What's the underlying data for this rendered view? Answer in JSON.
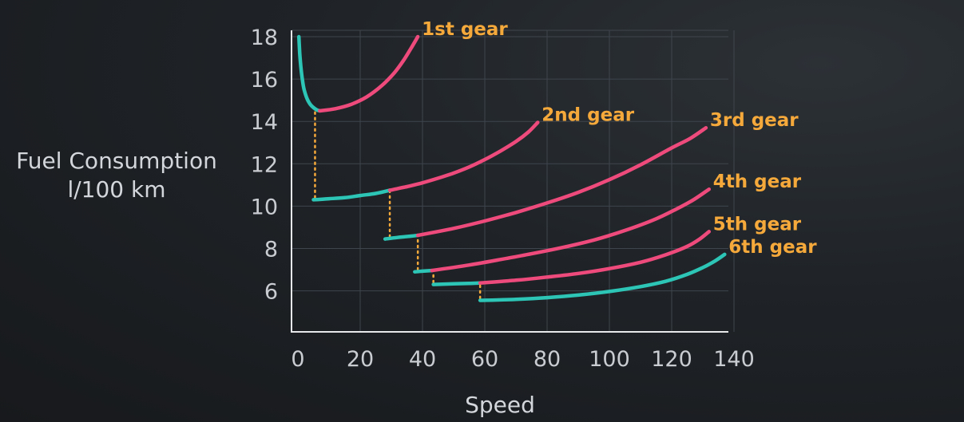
{
  "chart_data": {
    "type": "line",
    "ylabel": [
      "Fuel Consumption",
      "l/100 km"
    ],
    "xlabel": "Speed",
    "xlim": [
      0,
      140
    ],
    "ylim": [
      4,
      18
    ],
    "x_ticks": [
      0,
      20,
      40,
      60,
      80,
      100,
      120,
      140
    ],
    "y_ticks": [
      6,
      8,
      10,
      12,
      14,
      16,
      18
    ],
    "grid": true,
    "colors": {
      "optimal": "#2cc5b6",
      "suboptimal": "#ee4b7c",
      "shift": "#f6a93b"
    },
    "series": [
      {
        "name": "1st gear",
        "segments": [
          {
            "kind": "optimal",
            "x": [
              0.3,
              0.6,
              1,
              1.5,
              2,
              3,
              4,
              5,
              6,
              7
            ],
            "y": [
              18,
              17.2,
              16.5,
              15.9,
              15.5,
              15.05,
              14.8,
              14.65,
              14.55,
              14.5
            ]
          },
          {
            "kind": "suboptimal",
            "x": [
              7,
              12,
              17,
              22,
              27,
              31,
              34,
              36.5,
              38.5
            ],
            "y": [
              14.5,
              14.6,
              14.8,
              15.15,
              15.7,
              16.3,
              16.9,
              17.5,
              18
            ]
          }
        ]
      },
      {
        "name": "2nd gear",
        "segments": [
          {
            "kind": "optimal",
            "x": [
              5,
              10,
              15,
              20,
              25,
              29.5
            ],
            "y": [
              10.3,
              10.35,
              10.4,
              10.5,
              10.6,
              10.75
            ]
          },
          {
            "kind": "suboptimal",
            "x": [
              29.5,
              35,
              40,
              45,
              50,
              55,
              60,
              65,
              70,
              74,
              77
            ],
            "y": [
              10.75,
              10.92,
              11.1,
              11.32,
              11.56,
              11.85,
              12.2,
              12.6,
              13.05,
              13.5,
              13.95
            ]
          }
        ]
      },
      {
        "name": "3rd gear",
        "segments": [
          {
            "kind": "optimal",
            "x": [
              28,
              32,
              36,
              38.5
            ],
            "y": [
              8.45,
              8.52,
              8.58,
              8.62
            ]
          },
          {
            "kind": "suboptimal",
            "x": [
              38.5,
              50,
              60,
              70,
              80,
              90,
              100,
              110,
              120,
              126,
              131
            ],
            "y": [
              8.62,
              8.95,
              9.3,
              9.7,
              10.15,
              10.65,
              11.25,
              11.95,
              12.75,
              13.2,
              13.7
            ]
          }
        ]
      },
      {
        "name": "4th gear",
        "segments": [
          {
            "kind": "optimal",
            "x": [
              37.5,
              40,
              43
            ],
            "y": [
              6.9,
              6.93,
              6.96
            ]
          },
          {
            "kind": "suboptimal",
            "x": [
              43,
              55,
              65,
              75,
              85,
              95,
              105,
              115,
              122,
              127,
              132
            ],
            "y": [
              6.96,
              7.22,
              7.48,
              7.75,
              8.05,
              8.4,
              8.85,
              9.4,
              9.9,
              10.3,
              10.8
            ]
          }
        ]
      },
      {
        "name": "5th gear",
        "segments": [
          {
            "kind": "optimal",
            "x": [
              43.5,
              50,
              55,
              58.5
            ],
            "y": [
              6.3,
              6.33,
              6.35,
              6.37
            ]
          },
          {
            "kind": "suboptimal",
            "x": [
              58.5,
              70,
              80,
              90,
              100,
              110,
              118,
              125,
              129,
              132
            ],
            "y": [
              6.37,
              6.5,
              6.65,
              6.82,
              7.05,
              7.35,
              7.7,
              8.1,
              8.45,
              8.8
            ]
          }
        ]
      },
      {
        "name": "6th gear",
        "segments": [
          {
            "kind": "optimal",
            "x": [
              58.5,
              70,
              80,
              90,
              100,
              110,
              118,
              125,
              130,
              134,
              137
            ],
            "y": [
              5.55,
              5.6,
              5.68,
              5.8,
              5.97,
              6.2,
              6.45,
              6.78,
              7.1,
              7.42,
              7.72
            ]
          }
        ]
      }
    ],
    "shift_lines": [
      {
        "x": 5.5,
        "y_from": 10.4,
        "y_to": 14.5
      },
      {
        "x": 29.5,
        "y_from": 8.55,
        "y_to": 10.7
      },
      {
        "x": 38.5,
        "y_from": 7.0,
        "y_to": 8.55
      },
      {
        "x": 43.5,
        "y_from": 6.4,
        "y_to": 6.9
      },
      {
        "x": 58.5,
        "y_from": 5.65,
        "y_to": 6.35
      }
    ]
  }
}
